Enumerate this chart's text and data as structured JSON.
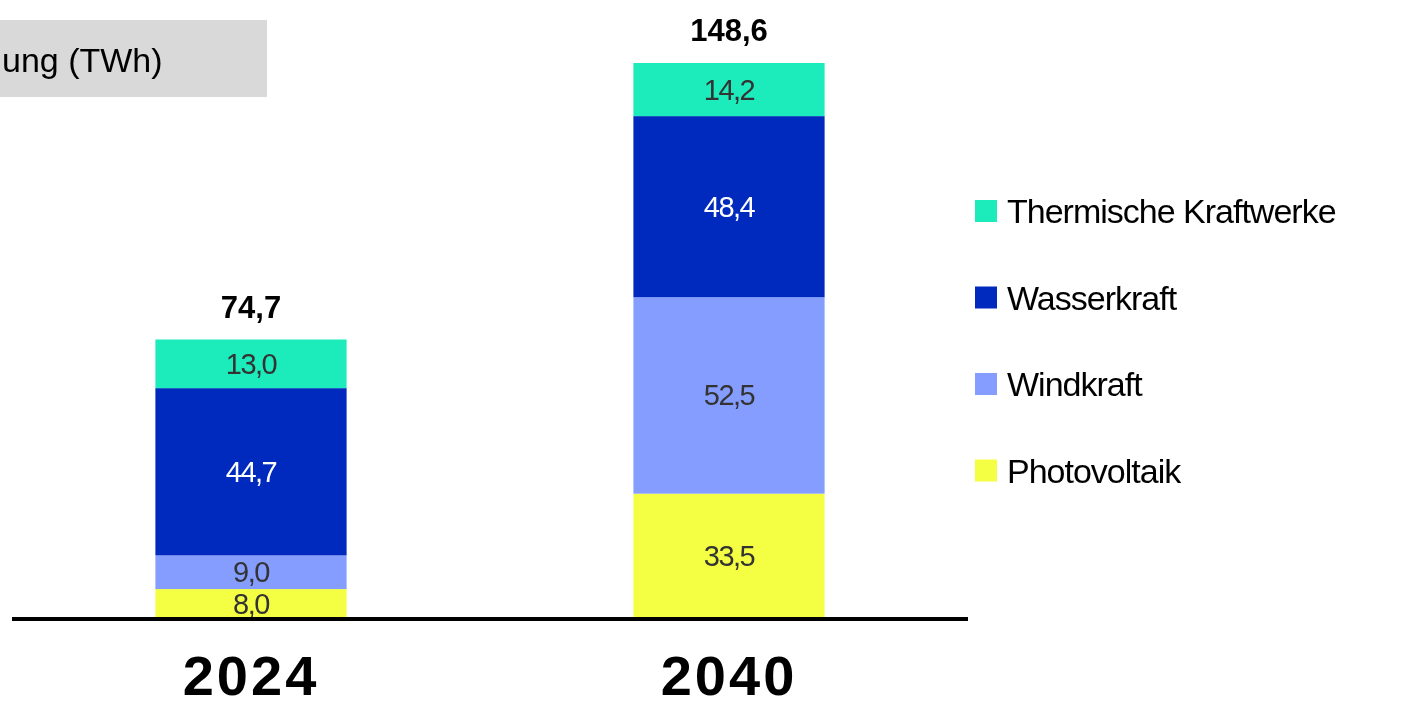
{
  "chart_data": {
    "type": "bar",
    "title": "ung (TWh)",
    "stacked": true,
    "categories": [
      "2024",
      "2040"
    ],
    "legend": "right",
    "series": [
      {
        "name": "Photovoltaik",
        "color": "#f4ff44",
        "values": [
          8.0,
          33.5
        ],
        "value_labels": [
          "8,0",
          "33,5"
        ]
      },
      {
        "name": "Windkraft",
        "color": "#849dff",
        "values": [
          9.0,
          52.5
        ],
        "value_labels": [
          "9,0",
          "52,5"
        ]
      },
      {
        "name": "Wasserkraft",
        "color": "#0029be",
        "values": [
          44.7,
          48.4
        ],
        "value_labels": [
          "44,7",
          "48,4"
        ]
      },
      {
        "name": "Thermische Kraftwerke",
        "color": "#1cebbb",
        "values": [
          13.0,
          14.2
        ],
        "value_labels": [
          "13,0",
          "14,2"
        ]
      }
    ],
    "totals": [
      "74,7",
      "148,6"
    ]
  }
}
